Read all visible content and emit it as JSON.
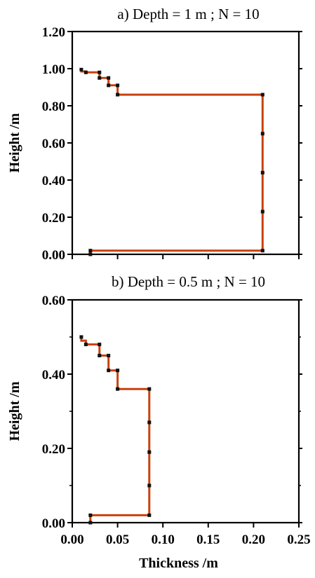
{
  "colors": {
    "line": "#c8410e",
    "marker": "#111111",
    "axis": "#000000",
    "background": "#ffffff"
  },
  "chart_data": [
    {
      "type": "line",
      "title": "a) Depth = 1 m ; N = 10",
      "xlabel": "",
      "ylabel": "Height /m",
      "xlim": [
        0.0,
        0.25
      ],
      "ylim": [
        0.0,
        1.2
      ],
      "x_ticks": [
        0.0,
        0.05,
        0.1,
        0.15,
        0.2,
        0.25
      ],
      "x_tick_labels": [],
      "y_ticks": [
        0.0,
        0.2,
        0.4,
        0.6,
        0.8,
        1.0,
        1.2
      ],
      "y_tick_labels": [
        "0.00",
        "0.20",
        "0.40",
        "0.60",
        "0.80",
        "1.00",
        "1.20"
      ],
      "grid": false,
      "series": [
        {
          "x": [
            0.02,
            0.02,
            0.21,
            0.21,
            0.21,
            0.21,
            0.21,
            0.05,
            0.05,
            0.04,
            0.04,
            0.03,
            0.03,
            0.015,
            0.015,
            0.01,
            0.01
          ],
          "y": [
            0.0,
            0.02,
            0.02,
            0.23,
            0.44,
            0.65,
            0.86,
            0.86,
            0.91,
            0.91,
            0.95,
            0.95,
            0.98,
            0.98,
            0.985,
            0.985,
            0.995
          ]
        }
      ],
      "markers": {
        "x": [
          0.02,
          0.02,
          0.21,
          0.21,
          0.21,
          0.21,
          0.21,
          0.05,
          0.05,
          0.04,
          0.04,
          0.03,
          0.03,
          0.015,
          0.01
        ],
        "y": [
          0.0,
          0.02,
          0.02,
          0.23,
          0.44,
          0.65,
          0.86,
          0.86,
          0.91,
          0.91,
          0.95,
          0.95,
          0.98,
          0.98,
          0.995
        ]
      }
    },
    {
      "type": "line",
      "title": "b) Depth = 0.5 m ; N = 10",
      "xlabel": "Thickness /m",
      "ylabel": "Height /m",
      "xlim": [
        0.0,
        0.25
      ],
      "ylim": [
        0.0,
        0.6
      ],
      "x_ticks": [
        0.0,
        0.05,
        0.1,
        0.15,
        0.2,
        0.25
      ],
      "x_tick_labels": [
        "0.00",
        "0.05",
        "0.10",
        "0.15",
        "0.20",
        "0.25"
      ],
      "y_ticks": [
        0.0,
        0.2,
        0.4,
        0.6
      ],
      "y_tick_labels": [
        "0.00",
        "0.20",
        "0.40",
        "0.60"
      ],
      "y_minor_ticks": [
        0.1,
        0.3,
        0.5
      ],
      "grid": false,
      "series": [
        {
          "x": [
            0.02,
            0.02,
            0.085,
            0.085,
            0.085,
            0.085,
            0.085,
            0.05,
            0.05,
            0.04,
            0.04,
            0.03,
            0.03,
            0.015,
            0.015,
            0.01,
            0.01
          ],
          "y": [
            0.0,
            0.02,
            0.02,
            0.1,
            0.19,
            0.27,
            0.36,
            0.36,
            0.41,
            0.41,
            0.45,
            0.45,
            0.48,
            0.48,
            0.49,
            0.49,
            0.5
          ]
        }
      ],
      "markers": {
        "x": [
          0.02,
          0.02,
          0.085,
          0.085,
          0.085,
          0.085,
          0.085,
          0.05,
          0.05,
          0.04,
          0.04,
          0.03,
          0.03,
          0.015,
          0.01
        ],
        "y": [
          0.0,
          0.02,
          0.02,
          0.1,
          0.19,
          0.27,
          0.36,
          0.36,
          0.41,
          0.41,
          0.45,
          0.45,
          0.48,
          0.48,
          0.5
        ]
      }
    }
  ]
}
